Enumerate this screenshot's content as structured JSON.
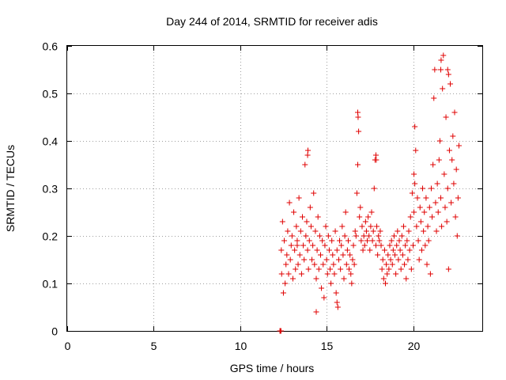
{
  "chart_data": {
    "type": "scatter",
    "title": "Day 244 of 2014, SRMTID for receiver adis",
    "xlabel": "GPS time / hours",
    "ylabel": "SRMTID / TECUs",
    "xlim": [
      0,
      24
    ],
    "ylim": [
      0,
      0.6
    ],
    "xticks": [
      0,
      5,
      10,
      15,
      20
    ],
    "yticks": [
      0,
      0.1,
      0.2,
      0.3,
      0.4,
      0.5,
      0.6
    ],
    "grid": true,
    "marker": "+",
    "series": [
      {
        "name": "SRMTID",
        "color": "#e00000",
        "x": [
          12.3,
          12.32,
          12.34,
          12.36,
          12.38,
          12.4,
          12.45,
          12.5,
          12.55,
          12.6,
          12.65,
          12.7,
          12.75,
          12.8,
          12.85,
          12.9,
          12.95,
          13.0,
          13.05,
          13.1,
          13.15,
          13.2,
          13.25,
          13.3,
          13.35,
          13.4,
          13.45,
          13.5,
          13.55,
          13.6,
          13.65,
          13.7,
          13.75,
          13.8,
          13.85,
          13.9,
          13.95,
          14.0,
          14.05,
          14.1,
          14.15,
          14.2,
          14.25,
          14.3,
          14.35,
          14.4,
          14.45,
          14.5,
          14.55,
          14.6,
          14.65,
          14.7,
          14.75,
          14.8,
          14.85,
          14.9,
          14.95,
          15.0,
          15.05,
          15.1,
          15.15,
          15.2,
          15.25,
          15.3,
          15.35,
          15.4,
          15.45,
          15.5,
          15.55,
          15.6,
          15.65,
          15.7,
          15.75,
          15.8,
          15.85,
          15.9,
          15.95,
          16.0,
          16.05,
          16.1,
          16.15,
          16.2,
          16.25,
          16.3,
          16.35,
          16.4,
          16.45,
          16.5,
          16.55,
          16.6,
          16.65,
          16.7,
          16.75,
          16.8,
          16.85,
          16.9,
          16.95,
          17.0,
          17.05,
          17.1,
          17.15,
          17.2,
          17.25,
          17.3,
          17.35,
          17.4,
          17.45,
          17.5,
          17.55,
          17.6,
          17.65,
          17.7,
          17.75,
          17.8,
          17.85,
          17.9,
          17.95,
          18.0,
          18.05,
          18.1,
          18.15,
          18.2,
          18.25,
          18.3,
          18.35,
          18.4,
          18.45,
          18.5,
          18.55,
          18.6,
          18.65,
          18.7,
          18.75,
          18.8,
          18.85,
          18.9,
          18.95,
          19.0,
          19.05,
          19.1,
          19.15,
          19.2,
          19.25,
          19.3,
          19.35,
          19.4,
          19.45,
          19.5,
          19.55,
          19.6,
          19.65,
          19.7,
          19.75,
          19.8,
          19.85,
          19.9,
          19.95,
          20.0,
          20.05,
          20.1,
          20.15,
          20.2,
          20.25,
          20.3,
          20.35,
          20.4,
          20.45,
          20.5,
          20.55,
          20.6,
          20.65,
          20.7,
          20.75,
          20.8,
          20.85,
          20.9,
          20.95,
          21.0,
          21.05,
          21.1,
          21.15,
          21.2,
          21.25,
          21.3,
          21.35,
          21.4,
          21.45,
          21.5,
          21.55,
          21.6,
          21.65,
          21.7,
          21.75,
          21.8,
          21.85,
          21.9,
          21.95,
          22.0,
          22.05,
          22.1,
          22.15,
          22.2,
          22.25,
          22.3,
          22.35,
          22.4,
          22.45,
          22.5,
          22.55,
          22.6,
          22.65,
          13.9,
          13.92,
          16.8,
          16.82,
          17.85,
          17.87,
          21.6,
          21.62,
          22.0,
          22.05,
          14.4,
          15.6,
          13.3,
          20.05,
          20.1
        ],
        "y": [
          0.0,
          0.0,
          0.0,
          0.0,
          0.17,
          0.12,
          0.23,
          0.08,
          0.19,
          0.1,
          0.14,
          0.16,
          0.21,
          0.12,
          0.27,
          0.15,
          0.18,
          0.2,
          0.11,
          0.25,
          0.17,
          0.13,
          0.22,
          0.19,
          0.14,
          0.28,
          0.16,
          0.21,
          0.12,
          0.24,
          0.18,
          0.15,
          0.35,
          0.2,
          0.23,
          0.17,
          0.13,
          0.19,
          0.26,
          0.22,
          0.15,
          0.18,
          0.29,
          0.14,
          0.21,
          0.11,
          0.17,
          0.24,
          0.13,
          0.2,
          0.16,
          0.09,
          0.19,
          0.14,
          0.07,
          0.18,
          0.22,
          0.15,
          0.12,
          0.2,
          0.17,
          0.13,
          0.1,
          0.19,
          0.16,
          0.14,
          0.12,
          0.21,
          0.08,
          0.17,
          0.05,
          0.15,
          0.19,
          0.13,
          0.18,
          0.22,
          0.16,
          0.11,
          0.2,
          0.25,
          0.14,
          0.17,
          0.19,
          0.13,
          0.16,
          0.12,
          0.1,
          0.15,
          0.18,
          0.14,
          0.21,
          0.2,
          0.29,
          0.35,
          0.42,
          0.24,
          0.26,
          0.19,
          0.22,
          0.17,
          0.2,
          0.18,
          0.23,
          0.21,
          0.19,
          0.24,
          0.2,
          0.17,
          0.22,
          0.25,
          0.19,
          0.21,
          0.3,
          0.36,
          0.18,
          0.22,
          0.16,
          0.2,
          0.19,
          0.21,
          0.18,
          0.13,
          0.15,
          0.11,
          0.17,
          0.1,
          0.14,
          0.12,
          0.16,
          0.13,
          0.18,
          0.15,
          0.19,
          0.14,
          0.17,
          0.2,
          0.16,
          0.12,
          0.18,
          0.21,
          0.15,
          0.19,
          0.17,
          0.13,
          0.2,
          0.16,
          0.22,
          0.14,
          0.18,
          0.11,
          0.19,
          0.15,
          0.21,
          0.17,
          0.24,
          0.13,
          0.29,
          0.18,
          0.25,
          0.31,
          0.38,
          0.22,
          0.28,
          0.19,
          0.15,
          0.26,
          0.23,
          0.17,
          0.3,
          0.21,
          0.25,
          0.18,
          0.28,
          0.14,
          0.22,
          0.19,
          0.26,
          0.12,
          0.3,
          0.24,
          0.35,
          0.49,
          0.55,
          0.27,
          0.21,
          0.31,
          0.25,
          0.36,
          0.4,
          0.28,
          0.22,
          0.51,
          0.58,
          0.33,
          0.26,
          0.45,
          0.23,
          0.3,
          0.13,
          0.38,
          0.52,
          0.27,
          0.36,
          0.41,
          0.31,
          0.46,
          0.24,
          0.34,
          0.2,
          0.28,
          0.39,
          0.37,
          0.38,
          0.46,
          0.45,
          0.37,
          0.36,
          0.55,
          0.57,
          0.55,
          0.54,
          0.04,
          0.06,
          0.18,
          0.33,
          0.43
        ]
      }
    ]
  }
}
